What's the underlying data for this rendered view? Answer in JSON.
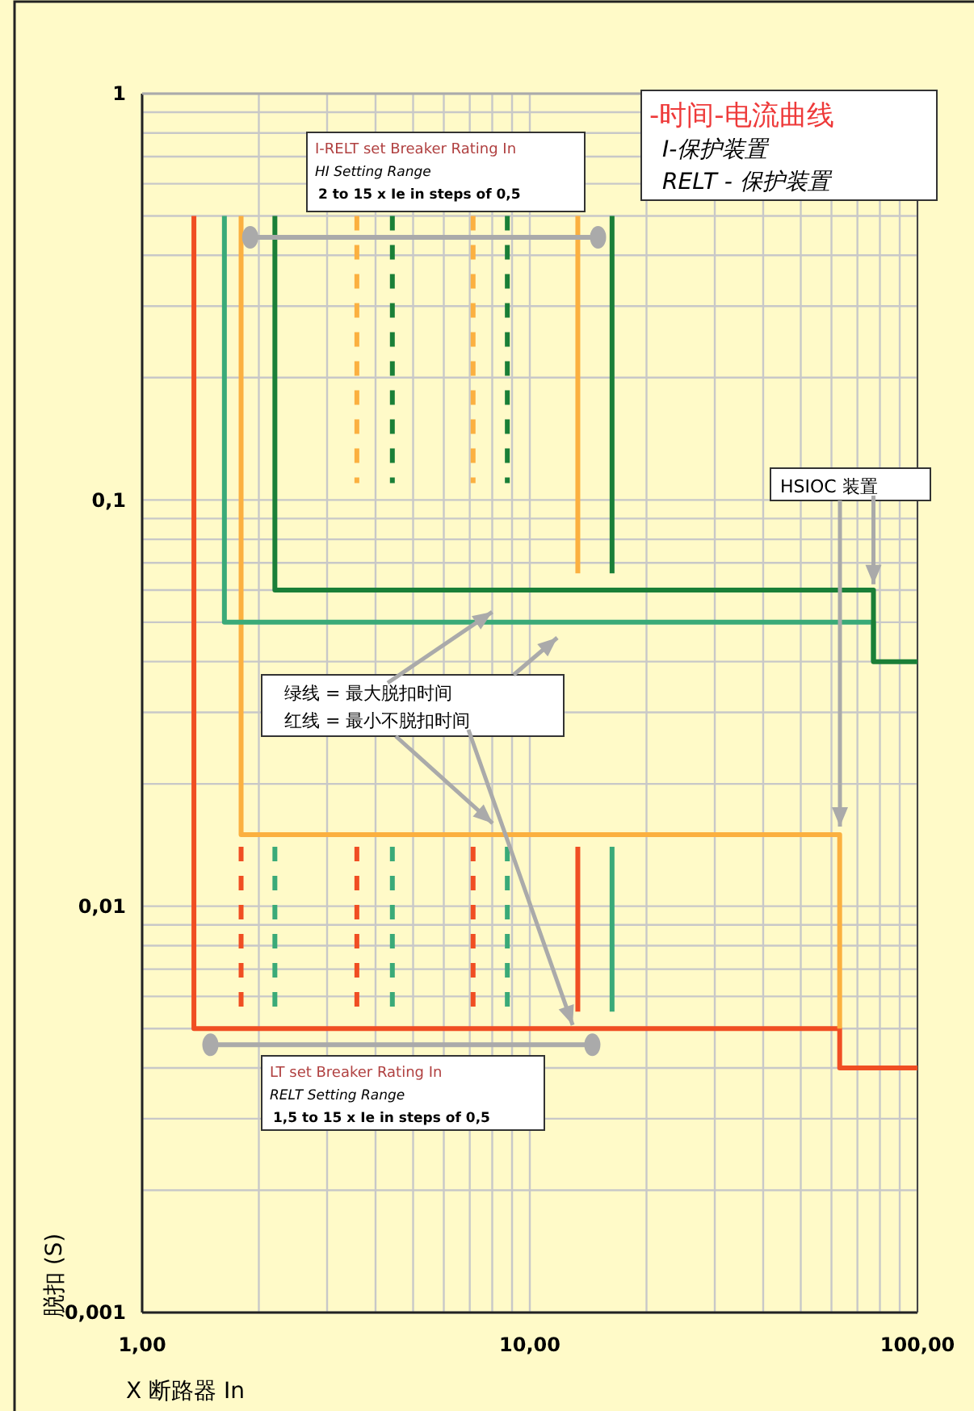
{
  "chart_data": {
    "type": "line",
    "title": "-时间-电流曲线",
    "xlabel": "X 断路器 In",
    "ylabel": "脱扣 (S)",
    "log": "xy",
    "grid": true,
    "xlim": [
      1,
      100
    ],
    "ylim": [
      0.001,
      1
    ],
    "xticks": [
      {
        "value": 1,
        "label": "1,00"
      },
      {
        "value": 10,
        "label": "10,00"
      },
      {
        "value": 100,
        "label": "100,00"
      }
    ],
    "yticks": [
      {
        "value": 0.001,
        "label": "0,001"
      },
      {
        "value": 0.01,
        "label": "0,01"
      },
      {
        "value": 0.1,
        "label": "0,1"
      },
      {
        "value": 1,
        "label": "1"
      }
    ],
    "annotations": [
      "I-RELT set Breaker Rating In",
      "HI Setting Range",
      "2 to 15 x Ie in steps of 0,5",
      {
        "text": "绿线 = 最大脱扣时间",
        "x": 8,
        "y": 0.053
      },
      {
        "text": "红线 = 最小不脱扣时间",
        "x": 12.9,
        "y": 0.0051
      },
      {
        "text": "HSIOC 装置",
        "x": 77,
        "y": 0.062
      },
      "LT set  Breaker Rating In",
      "RELT Setting Range",
      "1,5 to 15 x Ie in steps of 0,5",
      "I-保护装置",
      "RELT - 保护装置"
    ],
    "series": [
      {
        "color": "#f04e23",
        "x": [
          1.36,
          1.36,
          63,
          63,
          100
        ],
        "values": [
          0.5,
          0.005,
          0.005,
          0.004,
          0.004
        ]
      },
      {
        "color": "#fbb040",
        "x": [
          1.8,
          1.8,
          63,
          63
        ],
        "values": [
          0.5,
          0.015,
          0.015,
          0.005
        ]
      },
      {
        "color": "#3aaa78",
        "x": [
          1.63,
          1.63,
          77,
          77
        ],
        "values": [
          0.5,
          0.05,
          0.05,
          0.04
        ]
      },
      {
        "color": "#1a7f37",
        "x": [
          2.2,
          2.2,
          77,
          77,
          100
        ],
        "values": [
          0.5,
          0.06,
          0.06,
          0.04,
          0.04
        ]
      },
      {
        "color": "#fbb040",
        "x": [
          13.3,
          13.3
        ],
        "values": [
          0.5,
          0.066
        ]
      },
      {
        "color": "#1a7f37",
        "x": [
          16.3,
          16.3
        ],
        "values": [
          0.5,
          0.066
        ]
      },
      {
        "color": "#f04e23",
        "x": [
          13.3,
          13.3
        ],
        "values": [
          0.014,
          0.0055
        ]
      },
      {
        "color": "#3aaa78",
        "x": [
          16.3,
          16.3
        ],
        "values": [
          0.014,
          0.0055
        ]
      },
      {
        "color": "#fbb040",
        "line_style": "dashed",
        "x": [
          3.58,
          3.58,
          null,
          7.14,
          7.14
        ],
        "values": [
          0.5,
          0.11,
          null,
          0.5,
          0.11
        ]
      },
      {
        "color": "#1a7f37",
        "line_style": "dashed",
        "x": [
          4.42,
          4.42,
          null,
          8.75,
          8.75
        ],
        "values": [
          0.5,
          0.11,
          null,
          0.5,
          0.11
        ]
      },
      {
        "color": "#f04e23",
        "line_style": "dashed",
        "x": [
          1.8,
          1.8,
          null,
          3.58,
          3.58,
          null,
          7.14,
          7.14
        ],
        "values": [
          0.014,
          0.0055,
          null,
          0.014,
          0.0055,
          null,
          0.014,
          0.0055
        ]
      },
      {
        "color": "#3aaa78",
        "line_style": "dashed",
        "x": [
          2.2,
          2.2,
          null,
          4.42,
          4.42,
          null,
          8.75,
          8.75
        ],
        "values": [
          0.014,
          0.0055,
          null,
          0.014,
          0.0055,
          null,
          0.014,
          0.0055
        ]
      },
      {
        "color": "#aaaaaa",
        "marker": "circle",
        "x": [
          1.9,
          15
        ],
        "values": [
          0.443,
          0.443
        ]
      },
      {
        "color": "#aaaaaa",
        "marker": "circle",
        "x": [
          1.5,
          14.5
        ],
        "values": [
          0.00456,
          0.00456
        ]
      }
    ]
  }
}
